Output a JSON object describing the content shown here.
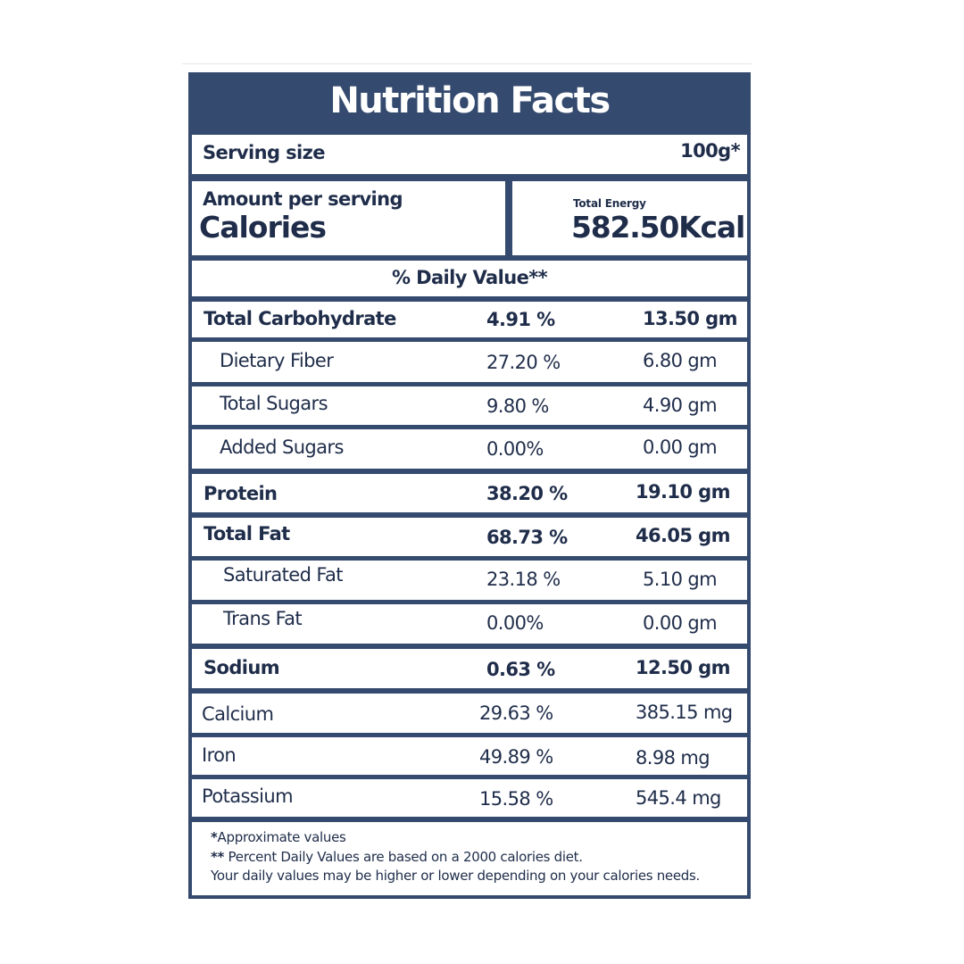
{
  "title": "Nutrition Facts",
  "serving": {
    "label": "Serving size",
    "value": "100g*"
  },
  "calories": {
    "amount_label": "Amount per serving",
    "label": "Calories",
    "energy_label": "Total Energy",
    "energy_value": "582.50Kcal"
  },
  "daily_value_header": "% Daily Value**",
  "nutrients": [
    {
      "name": "Total Carbohydrate",
      "percent": "4.91 %",
      "amount": "13.50 gm"
    },
    {
      "name": "Dietary Fiber",
      "percent": "27.20 %",
      "amount": "6.80 gm"
    },
    {
      "name": "Total Sugars",
      "percent": "9.80 %",
      "amount": "4.90 gm"
    },
    {
      "name": "Added Sugars",
      "percent": "0.00%",
      "amount": "0.00 gm"
    },
    {
      "name": "Protein",
      "percent": "38.20 %",
      "amount": "19.10 gm"
    },
    {
      "name": "Total Fat",
      "percent": "68.73 %",
      "amount": "46.05 gm"
    },
    {
      "name": "Saturated Fat",
      "percent": "23.18 %",
      "amount": "5.10 gm"
    },
    {
      "name": "Trans Fat",
      "percent": "0.00%",
      "amount": "0.00 gm"
    },
    {
      "name": "Sodium",
      "percent": "0.63 %",
      "amount": "12.50 gm"
    },
    {
      "name": "Calcium",
      "percent": "29.63 %",
      "amount": "385.15 mg"
    },
    {
      "name": "Iron",
      "percent": "49.89 %",
      "amount": "8.98 mg"
    },
    {
      "name": "Potassium",
      "percent": "15.58 %",
      "amount": "545.4 mg"
    }
  ],
  "footnotes": {
    "line1_mark": "*",
    "line1_text": "Approximate values",
    "line2_mark": "**",
    "line2_text": " Percent Daily Values are based on a 2000 calories diet.",
    "line3_text": "Your daily values may be higher or lower depending on your calories needs."
  }
}
